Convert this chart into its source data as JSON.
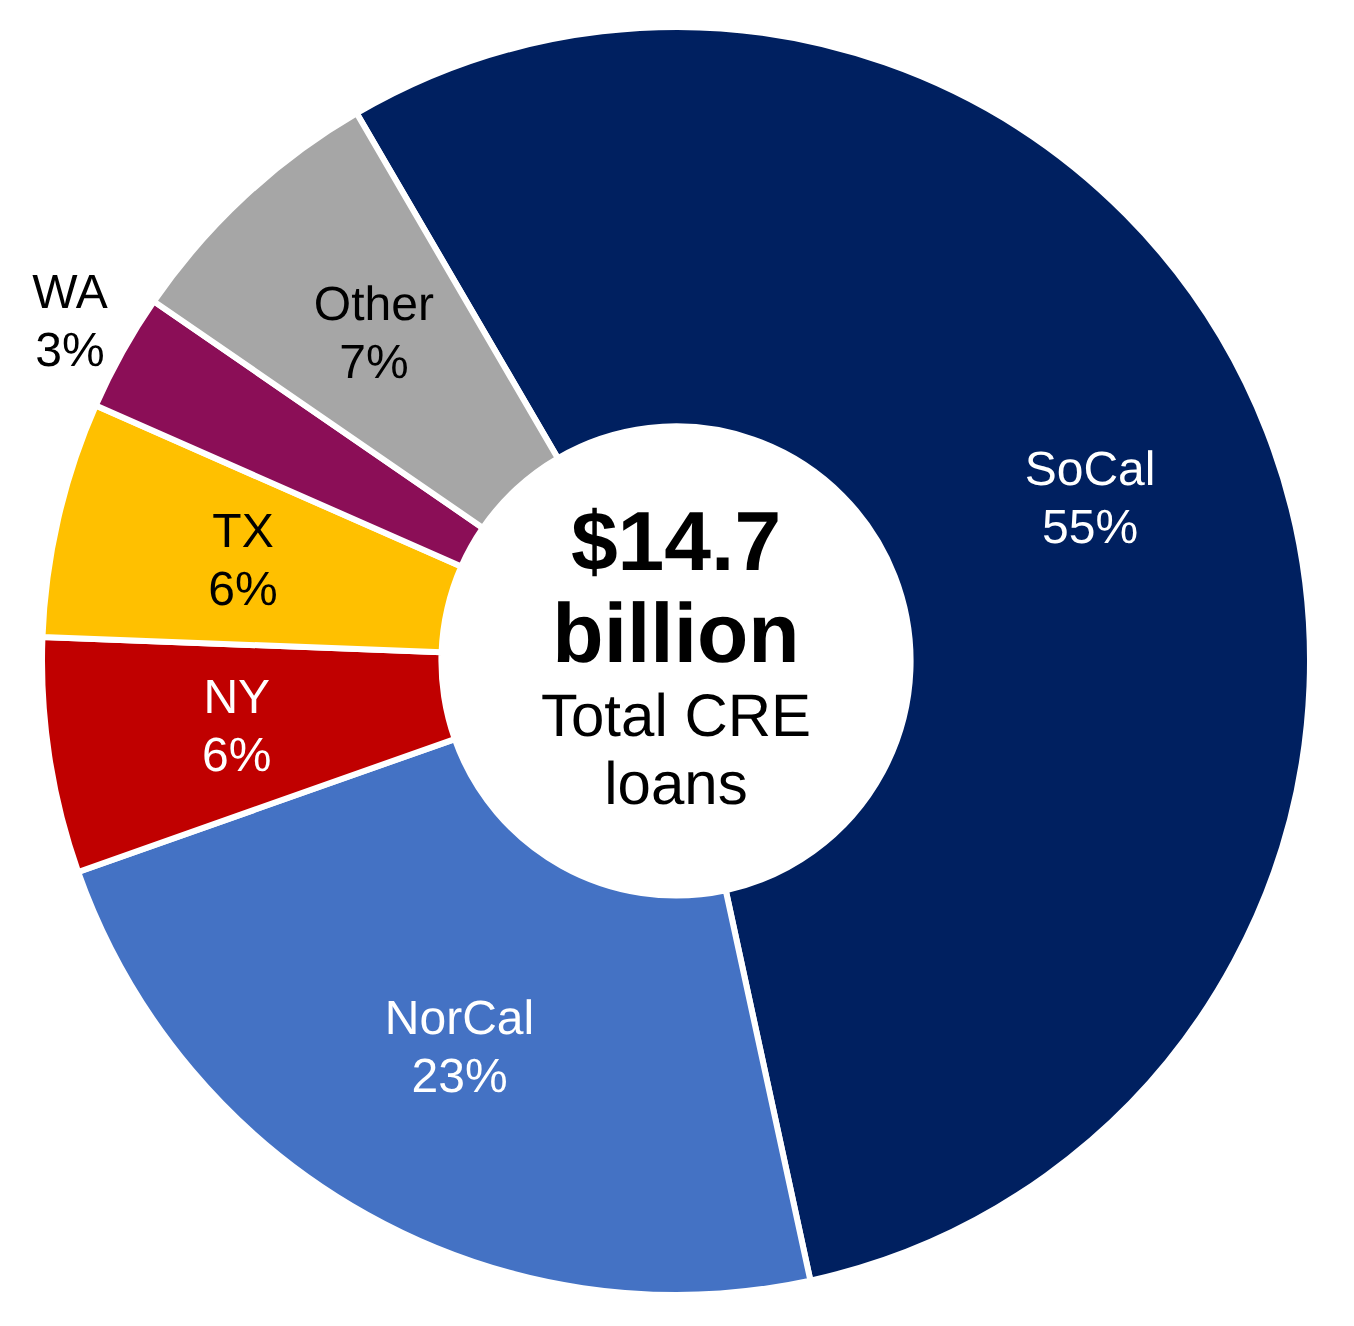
{
  "chart_data": {
    "type": "donut",
    "categories": [
      "SoCal",
      "NorCal",
      "NY",
      "TX",
      "WA",
      "Other"
    ],
    "values": [
      55,
      23,
      6,
      6,
      3,
      7
    ],
    "colors": [
      "#002060",
      "#4472c4",
      "#c00000",
      "#ffc000",
      "#8b0e57",
      "#a6a6a6"
    ],
    "value_labels": [
      "55%",
      "23%",
      "6%",
      "6%",
      "3%",
      "7%"
    ],
    "legend": false,
    "annotations": [
      "$14.7 billion",
      "Total CRE loans"
    ]
  }
}
